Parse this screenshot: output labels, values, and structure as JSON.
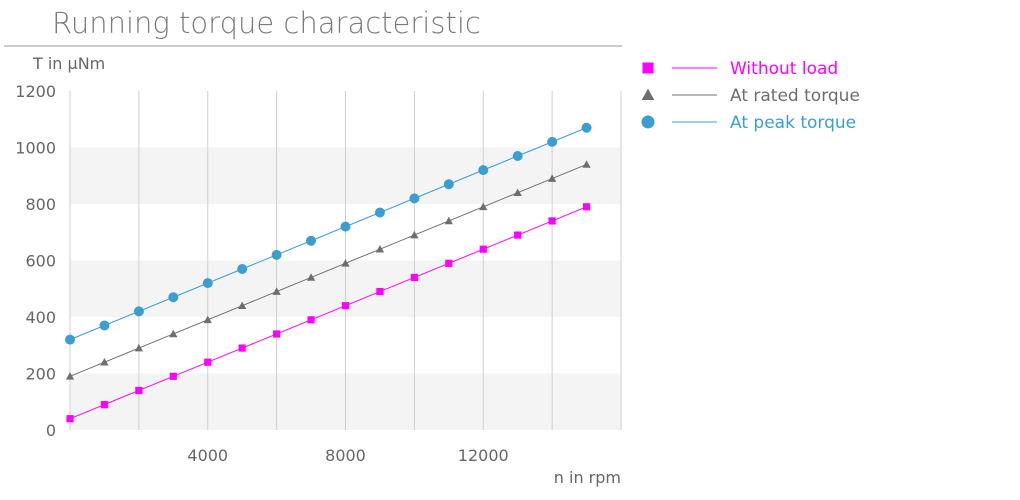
{
  "chart_data": {
    "type": "line",
    "title": "Running torque characteristic",
    "xlabel": "n in rpm",
    "ylabel": "T in µNm",
    "xlim": [
      0,
      16000
    ],
    "ylim": [
      0,
      1200
    ],
    "x_ticks": [
      4000,
      8000,
      12000
    ],
    "x_tick_labels": [
      "4000",
      "8000",
      "12000"
    ],
    "y_ticks": [
      0,
      200,
      400,
      600,
      800,
      1000,
      1200
    ],
    "y_tick_labels": [
      "0",
      "200",
      "400",
      "600",
      "800",
      "1000",
      "1200"
    ],
    "grid": true,
    "legend": "right",
    "x": [
      0,
      1000,
      2000,
      3000,
      4000,
      5000,
      6000,
      7000,
      8000,
      9000,
      10000,
      11000,
      12000,
      13000,
      14000,
      15000
    ],
    "series": [
      {
        "name": "Without load",
        "color": "#ff00ff",
        "marker": "square",
        "values": [
          40,
          90,
          140,
          190,
          240,
          290,
          340,
          390,
          440,
          490,
          540,
          590,
          640,
          690,
          740,
          790
        ]
      },
      {
        "name": "At rated torque",
        "color": "#6e6e6e",
        "marker": "triangle",
        "values": [
          190,
          240,
          290,
          340,
          390,
          440,
          490,
          540,
          590,
          640,
          690,
          740,
          790,
          840,
          890,
          940
        ]
      },
      {
        "name": "At peak torque",
        "color": "#3a9fd0",
        "marker": "circle",
        "values": [
          320,
          370,
          420,
          470,
          520,
          570,
          620,
          670,
          720,
          770,
          820,
          870,
          920,
          970,
          1020,
          1070
        ]
      }
    ]
  }
}
